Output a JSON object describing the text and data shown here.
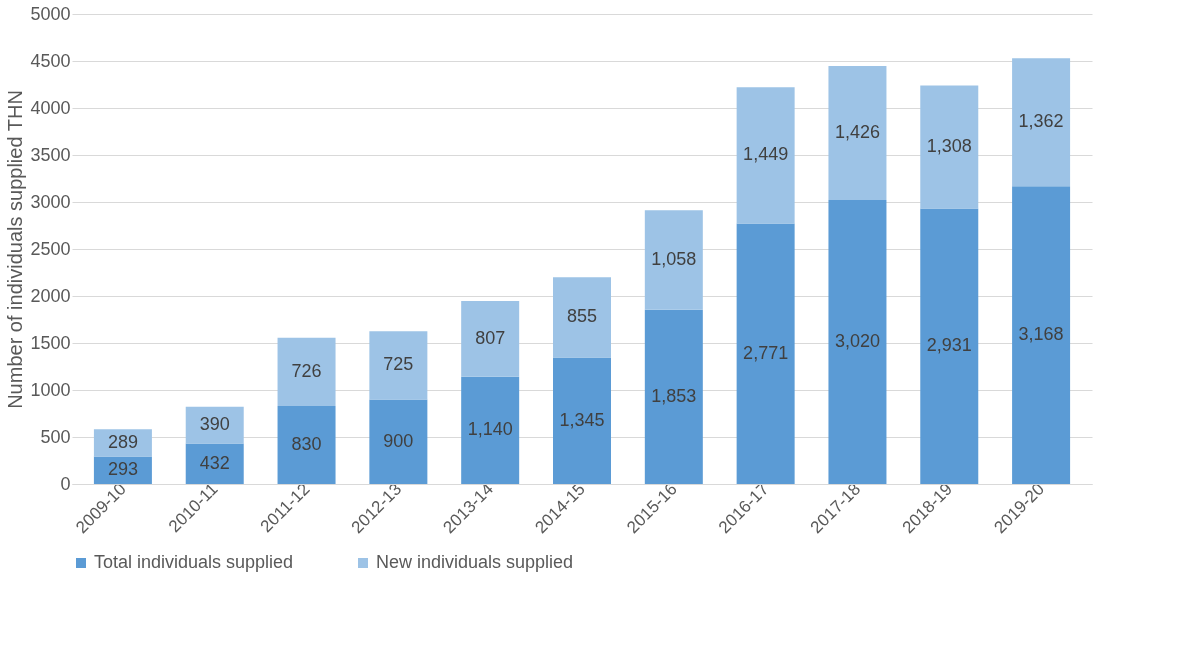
{
  "chart_data": {
    "type": "bar",
    "stacked": true,
    "ylabel": "Number of individuals supplied THN",
    "categories": [
      "2009-10",
      "2010-11",
      "2011-12",
      "2012-13",
      "2013-14",
      "2014-15",
      "2015-16",
      "2016-17",
      "2017-18",
      "2018-19",
      "2019-20"
    ],
    "series": [
      {
        "name": "Total individuals supplied",
        "color": "#5b9bd5",
        "values": [
          293,
          432,
          830,
          900,
          1140,
          1345,
          1853,
          2771,
          3020,
          2931,
          3168
        ],
        "value_labels": [
          "293",
          "432",
          "830",
          "900",
          "1,140",
          "1,345",
          "1,853",
          "2,771",
          "3,020",
          "2,931",
          "3,168"
        ]
      },
      {
        "name": "New individuals supplied",
        "color": "#9dc3e6",
        "values": [
          289,
          390,
          726,
          725,
          807,
          855,
          1058,
          1449,
          1426,
          1308,
          1362
        ],
        "value_labels": [
          "289",
          "390",
          "726",
          "725",
          "807",
          "855",
          "1,058",
          "1,449",
          "1,426",
          "1,308",
          "1,362"
        ]
      }
    ],
    "ylim": [
      0,
      5000
    ],
    "yticks": [
      0,
      500,
      1000,
      1500,
      2000,
      2500,
      3000,
      3500,
      4000,
      4500,
      5000
    ],
    "grid": "y",
    "legend": "bottom"
  }
}
